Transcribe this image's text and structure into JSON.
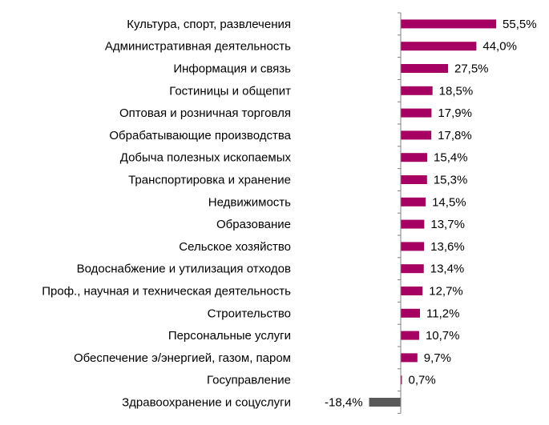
{
  "chart_data": {
    "type": "bar",
    "orientation": "horizontal",
    "categories": [
      "Культура, спорт, развлечения",
      "Административная деятельность",
      "Информация и связь",
      "Гостиницы и общепит",
      "Оптовая и розничная торговля",
      "Обрабатывающие производства",
      "Добыча полезных ископаемых",
      "Транспортировка и хранение",
      "Недвижимость",
      "Образование",
      "Сельское хозяйство",
      "Водоснабжение и утилизация отходов",
      "Проф., научная и техническая деятельность",
      "Строительство",
      "Персональные услуги",
      "Обеспечение э/энергией, газом, паром",
      "Госуправление",
      "Здравоохранение и соцуслуги"
    ],
    "values": [
      55.5,
      44.0,
      27.5,
      18.5,
      17.9,
      17.8,
      15.4,
      15.3,
      14.5,
      13.7,
      13.6,
      13.4,
      12.7,
      11.2,
      10.7,
      9.7,
      0.7,
      -18.4
    ],
    "data_labels": [
      "55,5%",
      "44,0%",
      "27,5%",
      "18,5%",
      "17,9%",
      "17,8%",
      "15,4%",
      "15,3%",
      "14,5%",
      "13,7%",
      "13,6%",
      "13,4%",
      "12,7%",
      "11,2%",
      "10,7%",
      "9,7%",
      "0,7%",
      "-18,4%"
    ],
    "unit": "%",
    "grid": false,
    "legend": "none",
    "colors": {
      "positive": "#A50062",
      "negative": "#595959",
      "axis": "#808080"
    }
  }
}
